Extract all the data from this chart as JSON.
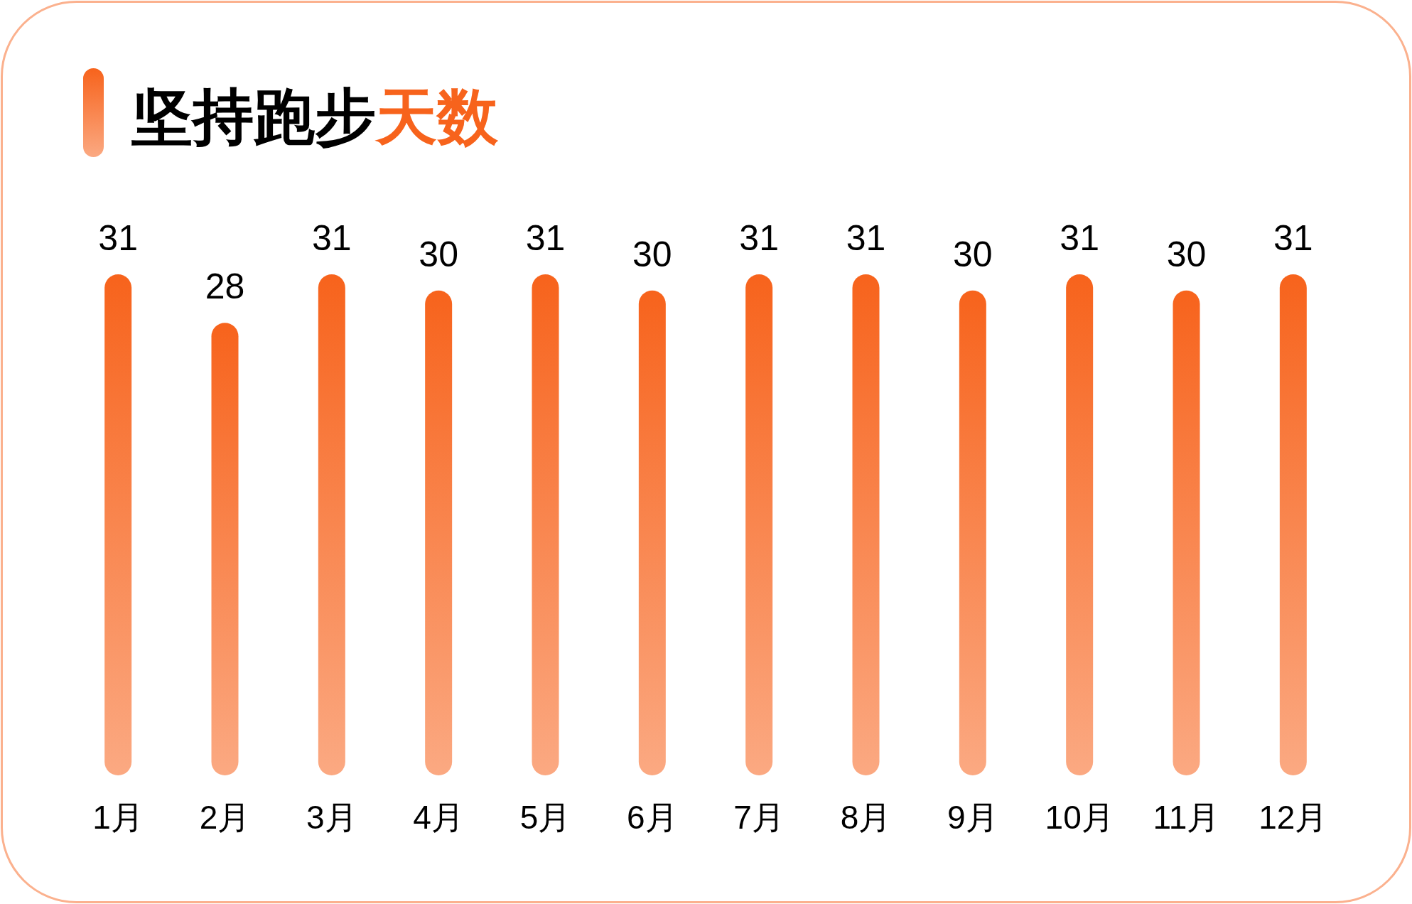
{
  "chart_data": {
    "type": "bar",
    "title": "坚持跑步**天数**",
    "categories": [
      "1月",
      "2月",
      "3月",
      "4月",
      "5月",
      "6月",
      "7月",
      "8月",
      "9月",
      "10月",
      "11月",
      "12月"
    ],
    "values": [
      31,
      28,
      31,
      30,
      31,
      30,
      31,
      31,
      30,
      31,
      30,
      31
    ],
    "color": "#f7631c",
    "data_labels": true
  }
}
